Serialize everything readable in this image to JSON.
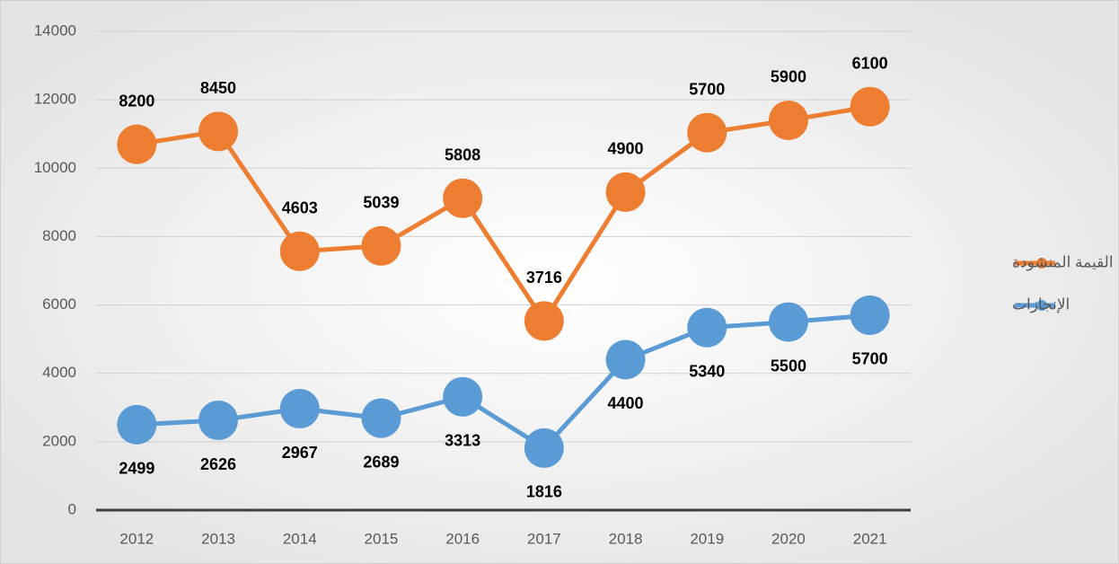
{
  "chart_data": {
    "type": "line",
    "stacked": true,
    "categories": [
      "2012",
      "2013",
      "2014",
      "2015",
      "2016",
      "2017",
      "2018",
      "2019",
      "2020",
      "2021"
    ],
    "series": [
      {
        "name": "الإنجازات",
        "color": "#5b9bd5",
        "values": [
          2499,
          2626,
          2967,
          2689,
          3313,
          1816,
          4400,
          5340,
          5500,
          5700
        ]
      },
      {
        "name": "القيمة المنشودة",
        "color": "#ed7d31",
        "values": [
          8200,
          8450,
          4603,
          5039,
          5808,
          3716,
          4900,
          5700,
          5900,
          6100
        ]
      }
    ],
    "ylim": [
      0,
      14000
    ],
    "yticks": [
      0,
      2000,
      4000,
      6000,
      8000,
      10000,
      12000,
      14000
    ],
    "grid": true,
    "legend": "right"
  }
}
